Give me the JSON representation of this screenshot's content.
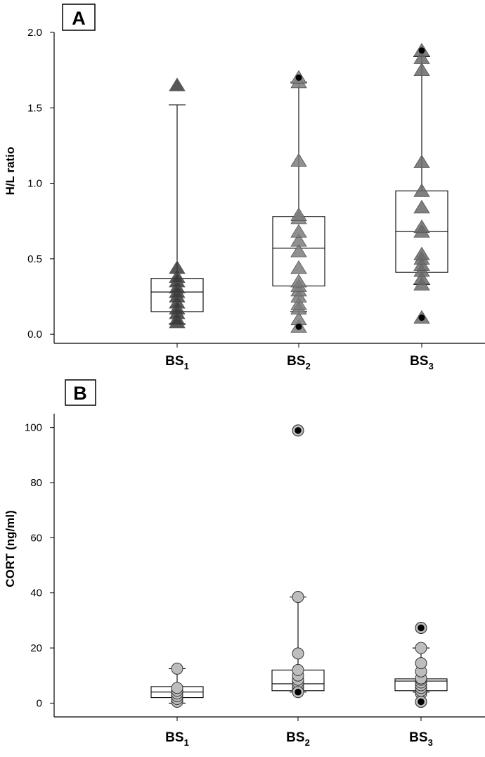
{
  "chart_data": [
    {
      "panel": "A",
      "type": "box",
      "title": "A",
      "xlabel": "",
      "ylabel": "H/L ratio",
      "ylim": [
        -0.06,
        2.0
      ],
      "yticks": [
        "0.0",
        "0.5",
        "1.0",
        "1.5",
        "2.0"
      ],
      "ytick_values": [
        0.0,
        0.5,
        1.0,
        1.5,
        2.0
      ],
      "grid": false,
      "marker": "triangle",
      "categories": [
        {
          "label": "BS",
          "sub": "1",
          "color": "#3a3a3a",
          "box": {
            "q1": 0.15,
            "median": 0.28,
            "q3": 0.37,
            "whisker_low": 0.07,
            "whisker_high": 1.52
          },
          "points": [
            0.08,
            0.1,
            0.14,
            0.17,
            0.21,
            0.25,
            0.28,
            0.31,
            0.35,
            0.38,
            0.44,
            1.65
          ],
          "outliers": []
        },
        {
          "label": "BS",
          "sub": "2",
          "color": "#7c7c7c",
          "box": {
            "q1": 0.32,
            "median": 0.57,
            "q3": 0.78,
            "whisker_low": 0.15,
            "whisker_high": 1.67
          },
          "points": [
            0.05,
            0.1,
            0.17,
            0.2,
            0.25,
            0.29,
            0.32,
            0.35,
            0.44,
            0.55,
            0.62,
            0.68,
            0.77,
            0.79,
            1.15,
            1.67,
            1.7
          ],
          "outliers": [
            0.05,
            1.7
          ]
        },
        {
          "label": "BS",
          "sub": "3",
          "color": "#6a6a6a",
          "box": {
            "q1": 0.41,
            "median": 0.68,
            "q3": 0.95,
            "whisker_low": 0.33,
            "whisker_high": 1.84
          },
          "points": [
            0.11,
            0.33,
            0.37,
            0.42,
            0.46,
            0.5,
            0.53,
            0.68,
            0.71,
            0.84,
            0.95,
            1.14,
            1.75,
            1.83,
            1.88
          ],
          "outliers": [
            0.11,
            1.88
          ]
        }
      ]
    },
    {
      "panel": "B",
      "type": "box",
      "title": "B",
      "xlabel": "",
      "ylabel": "CORT (ng/ml)",
      "ylim": [
        -5,
        105
      ],
      "yticks": [
        "0",
        "20",
        "40",
        "60",
        "80",
        "100"
      ],
      "ytick_values": [
        0,
        20,
        40,
        60,
        80,
        100
      ],
      "grid": false,
      "marker": "circle",
      "categories": [
        {
          "label": "BS",
          "sub": "1",
          "color": "#bdbdbd",
          "box": {
            "q1": 2.0,
            "median": 4.0,
            "q3": 6.0,
            "whisker_low": 0.0,
            "whisker_high": 12.5
          },
          "points": [
            0.5,
            1.5,
            2.5,
            3.5,
            4.5,
            5.5,
            12.5
          ],
          "outliers": []
        },
        {
          "label": "BS",
          "sub": "2",
          "color": "#bdbdbd",
          "box": {
            "q1": 4.5,
            "median": 7.0,
            "q3": 12.0,
            "whisker_low": 4.0,
            "whisker_high": 38.5
          },
          "points": [
            4.5,
            5.5,
            6.5,
            7.5,
            8.5,
            10.0,
            12.0,
            18.0,
            38.5,
            98.9
          ],
          "outliers": [
            4.0,
            98.9
          ]
        },
        {
          "label": "BS",
          "sub": "3",
          "color": "#bdbdbd",
          "box": {
            "q1": 4.5,
            "median": 8.0,
            "q3": 8.8,
            "whisker_low": 4.0,
            "whisker_high": 20.0
          },
          "points": [
            3.5,
            4.5,
            5.5,
            6.5,
            7.5,
            8.5,
            9.0,
            11.5,
            14.5,
            20.0,
            0.5,
            27.3
          ],
          "outliers": [
            0.5,
            27.3
          ]
        }
      ]
    }
  ]
}
